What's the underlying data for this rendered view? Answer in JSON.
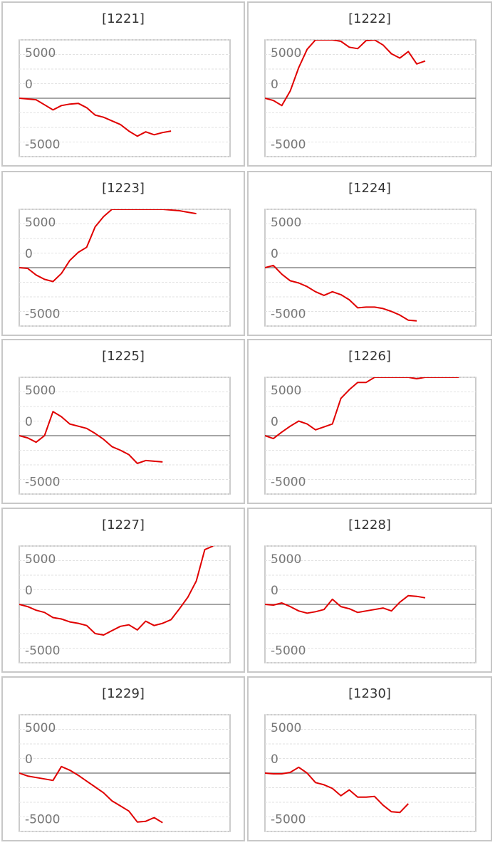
{
  "chart_data": [
    {
      "type": "line",
      "title": "[1221]",
      "color": "#e00000",
      "ylim": [
        -8000,
        8000
      ],
      "yticks": [
        -5000,
        0,
        5000
      ],
      "minor_yticks": [
        -8000,
        -6000,
        -4000,
        -2000,
        0,
        2000,
        4000,
        6000,
        8000
      ],
      "xlim": [
        0,
        25
      ],
      "grid": true,
      "values": [
        0,
        -100,
        -200,
        -900,
        -1600,
        -1000,
        -800,
        -700,
        -1300,
        -2300,
        -2600,
        -3100,
        -3600,
        -4500,
        -5200,
        -4600,
        -5000,
        -4700,
        -4500
      ]
    },
    {
      "type": "line",
      "title": "[1222]",
      "color": "#e00000",
      "ylim": [
        -8000,
        8000
      ],
      "yticks": [
        -5000,
        0,
        5000
      ],
      "minor_yticks": [
        -8000,
        -6000,
        -4000,
        -2000,
        0,
        2000,
        4000,
        6000,
        8000
      ],
      "xlim": [
        0,
        25
      ],
      "grid": true,
      "values": [
        0,
        -300,
        -1000,
        1000,
        4200,
        6700,
        8000,
        8000,
        8000,
        7800,
        7000,
        6800,
        7900,
        8000,
        7300,
        6100,
        5500,
        6400,
        4700,
        5100
      ]
    },
    {
      "type": "line",
      "title": "[1223]",
      "color": "#e00000",
      "ylim": [
        -8000,
        8000
      ],
      "yticks": [
        -5000,
        0,
        5000
      ],
      "minor_yticks": [
        -8000,
        -6000,
        -4000,
        -2000,
        0,
        2000,
        4000,
        6000,
        8000
      ],
      "xlim": [
        0,
        25
      ],
      "grid": true,
      "values": [
        0,
        -100,
        -1000,
        -1600,
        -1900,
        -800,
        1000,
        2100,
        2800,
        5600,
        7000,
        8000,
        8000,
        8000,
        8000,
        8000,
        8000,
        8000,
        7900,
        7800,
        7600,
        7400
      ]
    },
    {
      "type": "line",
      "title": "[1224]",
      "color": "#e00000",
      "ylim": [
        -8000,
        8000
      ],
      "yticks": [
        -5000,
        0,
        5000
      ],
      "minor_yticks": [
        -8000,
        -6000,
        -4000,
        -2000,
        0,
        2000,
        4000,
        6000,
        8000
      ],
      "xlim": [
        0,
        25
      ],
      "grid": true,
      "values": [
        0,
        300,
        -900,
        -1800,
        -2100,
        -2600,
        -3300,
        -3800,
        -3300,
        -3700,
        -4400,
        -5500,
        -5400,
        -5400,
        -5600,
        -6000,
        -6500,
        -7200,
        -7300
      ]
    },
    {
      "type": "line",
      "title": "[1225]",
      "color": "#e00000",
      "ylim": [
        -8000,
        8000
      ],
      "yticks": [
        -5000,
        0,
        5000
      ],
      "minor_yticks": [
        -8000,
        -6000,
        -4000,
        -2000,
        0,
        2000,
        4000,
        6000,
        8000
      ],
      "xlim": [
        0,
        25
      ],
      "grid": true,
      "values": [
        0,
        -300,
        -900,
        0,
        3300,
        2600,
        1600,
        1300,
        1000,
        300,
        -500,
        -1500,
        -2000,
        -2600,
        -3800,
        -3400,
        -3500,
        -3600
      ]
    },
    {
      "type": "line",
      "title": "[1226]",
      "color": "#e00000",
      "ylim": [
        -8000,
        8000
      ],
      "yticks": [
        -5000,
        0,
        5000
      ],
      "minor_yticks": [
        -8000,
        -6000,
        -4000,
        -2000,
        0,
        2000,
        4000,
        6000,
        8000
      ],
      "xlim": [
        0,
        25
      ],
      "grid": true,
      "values": [
        0,
        -400,
        500,
        1300,
        2000,
        1600,
        800,
        1200,
        1600,
        5100,
        6300,
        7300,
        7300,
        8000,
        8000,
        8000,
        8000,
        8000,
        7800,
        8000,
        8000,
        8000,
        8000,
        8000
      ]
    },
    {
      "type": "line",
      "title": "[1227]",
      "color": "#e00000",
      "ylim": [
        -8000,
        8000
      ],
      "yticks": [
        -5000,
        0,
        5000
      ],
      "minor_yticks": [
        -8000,
        -6000,
        -4000,
        -2000,
        0,
        2000,
        4000,
        6000,
        8000
      ],
      "xlim": [
        0,
        25
      ],
      "grid": true,
      "values": [
        0,
        -300,
        -800,
        -1100,
        -1800,
        -2000,
        -2400,
        -2600,
        -2900,
        -4000,
        -4200,
        -3600,
        -3000,
        -2800,
        -3500,
        -2300,
        -2900,
        -2600,
        -2100,
        -600,
        1000,
        3200,
        7500,
        8000
      ]
    },
    {
      "type": "line",
      "title": "[1228]",
      "color": "#e00000",
      "ylim": [
        -8000,
        8000
      ],
      "yticks": [
        -5000,
        0,
        5000
      ],
      "minor_yticks": [
        -8000,
        -6000,
        -4000,
        -2000,
        0,
        2000,
        4000,
        6000,
        8000
      ],
      "xlim": [
        0,
        25
      ],
      "grid": true,
      "values": [
        0,
        -100,
        200,
        -300,
        -900,
        -1200,
        -1000,
        -700,
        700,
        -300,
        -600,
        -1100,
        -900,
        -700,
        -500,
        -900,
        300,
        1200,
        1100,
        900
      ]
    },
    {
      "type": "line",
      "title": "[1229]",
      "color": "#e00000",
      "ylim": [
        -8000,
        8000
      ],
      "yticks": [
        -5000,
        0,
        5000
      ],
      "minor_yticks": [
        -8000,
        -6000,
        -4000,
        -2000,
        0,
        2000,
        4000,
        6000,
        8000
      ],
      "xlim": [
        0,
        25
      ],
      "grid": true,
      "values": [
        0,
        -400,
        -600,
        -800,
        -1000,
        900,
        400,
        -300,
        -1100,
        -1900,
        -2700,
        -3800,
        -4500,
        -5200,
        -6700,
        -6600,
        -6100,
        -6800
      ]
    },
    {
      "type": "line",
      "title": "[1230]",
      "color": "#e00000",
      "ylim": [
        -8000,
        8000
      ],
      "yticks": [
        -5000,
        0,
        5000
      ],
      "minor_yticks": [
        -8000,
        -6000,
        -4000,
        -2000,
        0,
        2000,
        4000,
        6000,
        8000
      ],
      "xlim": [
        0,
        25
      ],
      "grid": true,
      "values": [
        0,
        -100,
        -100,
        100,
        800,
        0,
        -1300,
        -1600,
        -2100,
        -3100,
        -2300,
        -3300,
        -3300,
        -3200,
        -4400,
        -5300,
        -5400,
        -4200
      ]
    }
  ]
}
